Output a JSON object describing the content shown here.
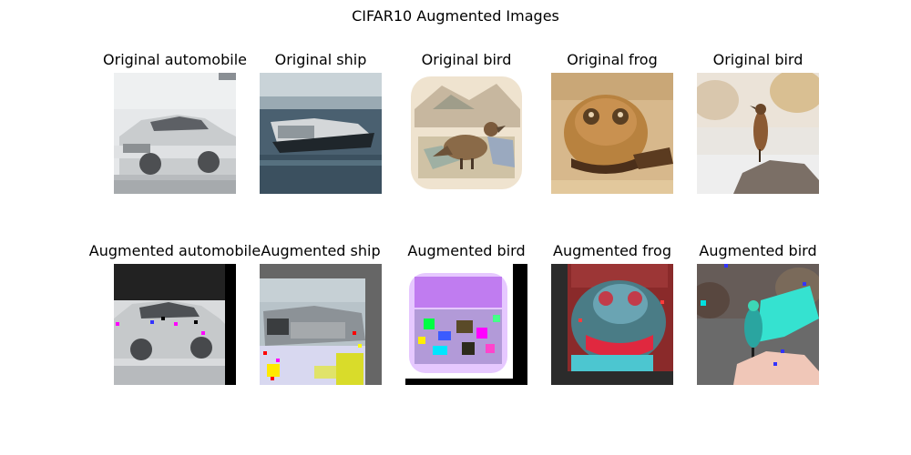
{
  "figure": {
    "title": "CIFAR10 Augmented Images"
  },
  "original_row": [
    {
      "caption": "Original automobile",
      "subject": "white sedan car"
    },
    {
      "caption": "Original ship",
      "subject": "ship on water"
    },
    {
      "caption": "Original bird",
      "subject": "illustrated bird"
    },
    {
      "caption": "Original frog",
      "subject": "frog face"
    },
    {
      "caption": "Original bird",
      "subject": "bird on perch"
    }
  ],
  "augmented_row": [
    {
      "caption": "Augmented automobile",
      "subject": "shifted car with dark padding"
    },
    {
      "caption": "Augmented ship",
      "subject": "shifted ship with gray padding"
    },
    {
      "caption": "Augmented bird",
      "subject": "color-jittered bird with black padding"
    },
    {
      "caption": "Augmented frog",
      "subject": "color-inverted frog"
    },
    {
      "caption": "Augmented bird",
      "subject": "color-jittered bird"
    }
  ]
}
